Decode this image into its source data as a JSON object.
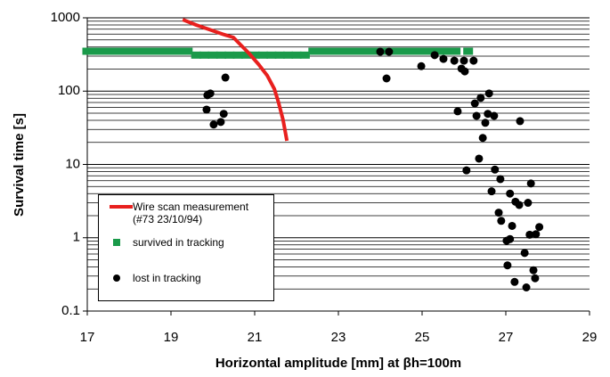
{
  "chart_data": {
    "type": "scatter",
    "x_label": "Horizontal amplitude [mm] at βh=100m",
    "y_label": "Survival time [s]",
    "xlim": [
      17,
      29
    ],
    "xticks": [
      17,
      19,
      21,
      23,
      25,
      27,
      29
    ],
    "ylim": [
      0.1,
      1000
    ],
    "yticks": [
      0.1,
      1,
      10,
      100,
      1000
    ],
    "ylog": true,
    "grid": true,
    "series": [
      {
        "name": "Wire scan measurement (#73 23/10/94)",
        "color": "#e8201e",
        "mode": "line",
        "x": [
          19.28,
          19.6,
          19.91,
          20.23,
          20.49,
          20.66,
          20.87,
          21.09,
          21.3,
          21.47,
          21.57,
          21.68,
          21.77
        ],
        "values": [
          945,
          800,
          695,
          600,
          540,
          430,
          325,
          233,
          163,
          107,
          70,
          40,
          21
        ]
      },
      {
        "name": "survived in tracking",
        "color": "#1a9a4a",
        "mode": "square",
        "x": [
          17.0,
          17.2,
          17.4,
          17.6,
          17.8,
          18.0,
          18.2,
          18.4,
          18.6,
          18.8,
          19.0,
          19.2,
          19.4,
          19.6,
          19.8,
          20.0,
          20.2,
          20.4,
          20.6,
          20.8,
          21.0,
          21.2,
          21.4,
          21.6,
          21.8,
          22.0,
          22.2,
          22.4,
          22.6,
          22.8,
          23.0,
          23.2,
          23.4,
          23.6,
          23.8,
          24.0,
          24.2,
          24.4,
          24.6,
          24.8,
          25.0,
          25.2,
          25.4,
          25.6,
          25.8,
          26.1
        ],
        "values": [
          350,
          350,
          350,
          350,
          350,
          350,
          350,
          350,
          350,
          350,
          350,
          350,
          350,
          310,
          310,
          310,
          310,
          310,
          310,
          310,
          310,
          310,
          310,
          310,
          310,
          310,
          310,
          350,
          350,
          350,
          350,
          350,
          350,
          350,
          350,
          350,
          350,
          350,
          350,
          350,
          350,
          350,
          350,
          350,
          350,
          350
        ]
      },
      {
        "name": "lost in tracking",
        "color": "#000000",
        "mode": "circle",
        "x": [
          19.85,
          19.94,
          19.87,
          20.02,
          20.19,
          20.26,
          20.3,
          24.0,
          24.21,
          24.15,
          24.98,
          25.3,
          25.51,
          25.77,
          25.94,
          26.0,
          26.02,
          26.23,
          25.85,
          26.26,
          26.4,
          26.6,
          26.3,
          26.51,
          26.57,
          26.72,
          26.45,
          26.36,
          26.06,
          26.74,
          26.87,
          26.66,
          27.1,
          27.6,
          27.23,
          27.32,
          27.53,
          26.83,
          26.89,
          27.15,
          27.57,
          27.72,
          27.8,
          27.02,
          27.1,
          27.45,
          27.04,
          27.66,
          27.7,
          27.21,
          27.49,
          27.34
        ],
        "values": [
          56,
          93,
          88,
          35,
          38,
          49,
          153,
          345,
          345,
          149,
          219,
          310,
          275,
          260,
          203,
          260,
          186,
          260,
          53,
          68,
          81,
          93,
          46,
          37,
          49,
          46,
          23,
          12,
          8.3,
          8.5,
          6.3,
          4.3,
          4.0,
          5.5,
          3.1,
          2.8,
          3.0,
          2.2,
          1.7,
          1.45,
          1.1,
          1.12,
          1.4,
          0.91,
          0.96,
          0.62,
          0.42,
          0.36,
          0.28,
          0.25,
          0.21,
          39
        ]
      }
    ]
  }
}
